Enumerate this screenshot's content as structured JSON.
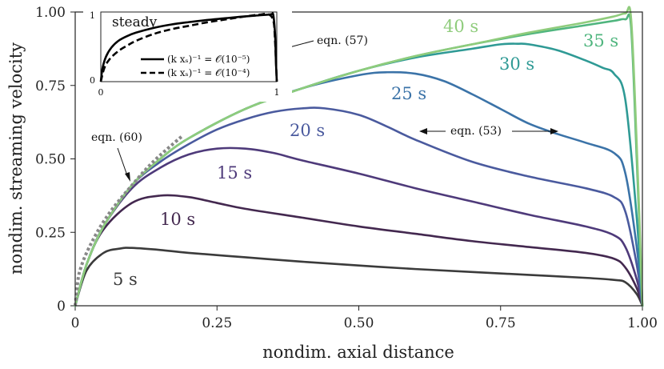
{
  "chart_data": {
    "type": "line",
    "xlabel": "nondim. axial distance",
    "ylabel": "nondim. streaming velocity",
    "xlim": [
      0,
      1
    ],
    "ylim": [
      0,
      1
    ],
    "xticks": [
      "0",
      "0.25",
      "0.50",
      "0.75",
      "1.00"
    ],
    "xtick_values": [
      0,
      0.25,
      0.5,
      0.75,
      1.0
    ],
    "yticks": [
      "0",
      "0.25",
      "0.50",
      "0.75",
      "1.00"
    ],
    "ytick_values": [
      0,
      0.25,
      0.5,
      0.75,
      1.0
    ],
    "series": [
      {
        "name": "5 s",
        "label": "5 s",
        "color": "#3b3b3b",
        "x": [
          0,
          0.02,
          0.05,
          0.08,
          0.1,
          0.15,
          0.2,
          0.3,
          0.4,
          0.5,
          0.6,
          0.7,
          0.8,
          0.9,
          0.95,
          0.97,
          0.99,
          1.0
        ],
        "y": [
          0,
          0.12,
          0.18,
          0.195,
          0.197,
          0.19,
          0.18,
          0.165,
          0.15,
          0.137,
          0.125,
          0.115,
          0.105,
          0.095,
          0.088,
          0.08,
          0.04,
          0
        ]
      },
      {
        "name": "10 s",
        "label": "10 s",
        "color": "#43284f",
        "x": [
          0,
          0.02,
          0.05,
          0.1,
          0.15,
          0.2,
          0.25,
          0.3,
          0.4,
          0.5,
          0.6,
          0.7,
          0.8,
          0.9,
          0.95,
          0.97,
          0.99,
          1.0
        ],
        "y": [
          0,
          0.14,
          0.26,
          0.35,
          0.375,
          0.37,
          0.35,
          0.33,
          0.3,
          0.27,
          0.245,
          0.22,
          0.2,
          0.18,
          0.16,
          0.13,
          0.06,
          0
        ]
      },
      {
        "name": "15 s",
        "label": "15 s",
        "color": "#4e3a7a",
        "x": [
          0,
          0.02,
          0.05,
          0.1,
          0.15,
          0.2,
          0.25,
          0.3,
          0.35,
          0.4,
          0.5,
          0.6,
          0.7,
          0.8,
          0.9,
          0.95,
          0.97,
          0.99,
          1.0
        ],
        "y": [
          0,
          0.14,
          0.27,
          0.4,
          0.47,
          0.515,
          0.535,
          0.535,
          0.52,
          0.495,
          0.45,
          0.4,
          0.355,
          0.31,
          0.27,
          0.24,
          0.2,
          0.09,
          0
        ]
      },
      {
        "name": "20 s",
        "label": "20 s",
        "color": "#4a5a9e",
        "x": [
          0,
          0.02,
          0.05,
          0.1,
          0.15,
          0.2,
          0.25,
          0.3,
          0.35,
          0.4,
          0.44,
          0.5,
          0.55,
          0.6,
          0.7,
          0.8,
          0.9,
          0.95,
          0.97,
          0.99,
          1.0
        ],
        "y": [
          0,
          0.14,
          0.27,
          0.41,
          0.49,
          0.55,
          0.6,
          0.635,
          0.66,
          0.672,
          0.672,
          0.65,
          0.61,
          0.565,
          0.49,
          0.44,
          0.4,
          0.37,
          0.32,
          0.14,
          0
        ]
      },
      {
        "name": "25 s",
        "label": "25 s",
        "color": "#3b73a8",
        "x": [
          0,
          0.02,
          0.05,
          0.1,
          0.15,
          0.2,
          0.3,
          0.4,
          0.5,
          0.55,
          0.6,
          0.65,
          0.7,
          0.75,
          0.8,
          0.85,
          0.9,
          0.95,
          0.97,
          0.99,
          1.0
        ],
        "y": [
          0,
          0.14,
          0.27,
          0.41,
          0.5,
          0.57,
          0.67,
          0.74,
          0.785,
          0.795,
          0.79,
          0.765,
          0.72,
          0.67,
          0.62,
          0.585,
          0.555,
          0.52,
          0.45,
          0.2,
          0
        ]
      },
      {
        "name": "30 s",
        "label": "30 s",
        "color": "#2f9a95",
        "x": [
          0,
          0.02,
          0.05,
          0.1,
          0.15,
          0.2,
          0.3,
          0.4,
          0.5,
          0.6,
          0.7,
          0.75,
          0.78,
          0.8,
          0.85,
          0.9,
          0.93,
          0.95,
          0.97,
          0.99,
          1.0
        ],
        "y": [
          0,
          0.14,
          0.27,
          0.41,
          0.5,
          0.57,
          0.67,
          0.74,
          0.8,
          0.845,
          0.875,
          0.89,
          0.892,
          0.89,
          0.87,
          0.835,
          0.81,
          0.79,
          0.7,
          0.3,
          0
        ]
      },
      {
        "name": "35 s",
        "label": "35 s",
        "color": "#4fb57e",
        "x": [
          0,
          0.02,
          0.05,
          0.1,
          0.15,
          0.2,
          0.3,
          0.4,
          0.5,
          0.6,
          0.7,
          0.8,
          0.9,
          0.95,
          0.97,
          0.98,
          0.99,
          1.0
        ],
        "y": [
          0,
          0.14,
          0.27,
          0.41,
          0.5,
          0.57,
          0.67,
          0.74,
          0.8,
          0.85,
          0.89,
          0.925,
          0.955,
          0.97,
          0.975,
          0.95,
          0.5,
          0
        ]
      },
      {
        "name": "40 s",
        "label": "40 s",
        "color": "#8fcc7c",
        "x": [
          0,
          0.02,
          0.05,
          0.1,
          0.15,
          0.2,
          0.3,
          0.4,
          0.5,
          0.6,
          0.7,
          0.8,
          0.9,
          0.95,
          0.97,
          0.98,
          0.99,
          1.0
        ],
        "y": [
          0,
          0.14,
          0.27,
          0.41,
          0.5,
          0.57,
          0.67,
          0.74,
          0.8,
          0.85,
          0.89,
          0.93,
          0.965,
          0.985,
          0.995,
          0.98,
          0.55,
          0
        ]
      },
      {
        "name": "eqn. (60)",
        "label": "eqn. (60)",
        "color": "#888888",
        "dashed": true,
        "x": [
          0,
          0.005,
          0.01,
          0.02,
          0.04,
          0.06,
          0.08,
          0.1,
          0.12,
          0.14,
          0.16,
          0.19
        ],
        "y": [
          0,
          0.09,
          0.13,
          0.18,
          0.255,
          0.315,
          0.365,
          0.41,
          0.455,
          0.495,
          0.53,
          0.58
        ]
      }
    ],
    "annotations": [
      {
        "text": "eqn. (60)",
        "target": [
          0.1,
          0.44
        ]
      },
      {
        "text": "eqn. (53)"
      },
      {
        "text": "eqn. (57)"
      }
    ],
    "inset": {
      "title": "steady",
      "xticks": [
        "0",
        "1"
      ],
      "yticks": [
        "0",
        "1"
      ],
      "legend": [
        {
          "label": "(k xₛ)⁻¹ = 𝒪(10⁻⁵)",
          "style": "solid"
        },
        {
          "label": "(k xₛ)⁻¹ = 𝒪(10⁻⁴)",
          "style": "dashed"
        }
      ],
      "series": [
        {
          "name": "solid",
          "x": [
            0,
            0.01,
            0.03,
            0.06,
            0.1,
            0.15,
            0.2,
            0.3,
            0.4,
            0.5,
            0.6,
            0.7,
            0.8,
            0.9,
            0.95,
            0.97,
            0.98,
            0.99,
            0.995,
            1.0
          ],
          "y": [
            0,
            0.2,
            0.37,
            0.5,
            0.6,
            0.67,
            0.72,
            0.79,
            0.84,
            0.875,
            0.905,
            0.93,
            0.955,
            0.975,
            0.985,
            0.99,
            0.98,
            0.7,
            0.3,
            0
          ]
        },
        {
          "name": "dashed",
          "x": [
            0,
            0.02,
            0.05,
            0.1,
            0.15,
            0.2,
            0.3,
            0.4,
            0.5,
            0.6,
            0.7,
            0.8,
            0.9,
            0.95,
            0.98,
            0.99,
            1.0
          ],
          "y": [
            0,
            0.2,
            0.33,
            0.45,
            0.53,
            0.6,
            0.7,
            0.77,
            0.82,
            0.87,
            0.91,
            0.95,
            0.985,
            0.99,
            0.9,
            0.6,
            0
          ]
        }
      ]
    }
  }
}
